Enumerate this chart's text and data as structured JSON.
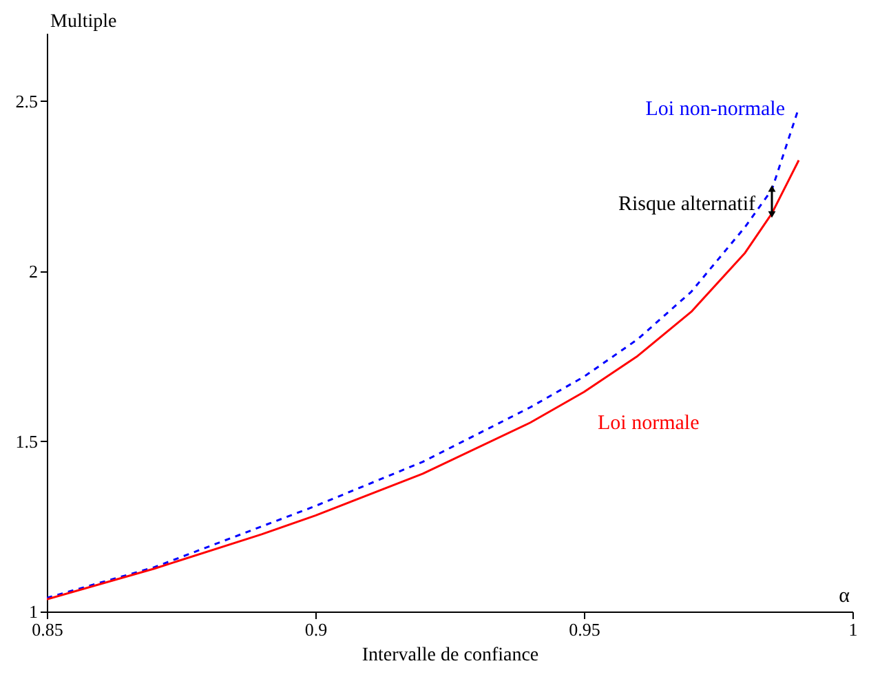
{
  "chart_data": {
    "type": "line",
    "xlabel": "Intervalle de confiance",
    "ylabel": "Multiple",
    "xlim": [
      0.85,
      1
    ],
    "xticks": [
      0.85,
      0.9,
      0.95,
      1
    ],
    "ylim": [
      1,
      2.7
    ],
    "yticks": [
      1,
      1.5,
      2,
      2.5
    ],
    "grid": false,
    "marker": "none",
    "x": [
      0.85,
      0.87,
      0.89,
      0.9,
      0.92,
      0.94,
      0.95,
      0.96,
      0.97,
      0.98,
      0.985,
      0.99
    ],
    "series": [
      {
        "name": "Loi non-normale",
        "color": "#0000ff",
        "line_style": "dashed",
        "values": [
          1.04,
          1.13,
          1.25,
          1.31,
          1.44,
          1.6,
          1.69,
          1.8,
          1.94,
          2.13,
          2.24,
          2.48
        ]
      },
      {
        "name": "Loi normale",
        "color": "#ff0000",
        "line_style": "solid",
        "values": [
          1.036,
          1.126,
          1.227,
          1.282,
          1.405,
          1.555,
          1.645,
          1.751,
          1.881,
          2.054,
          2.17,
          2.326
        ]
      }
    ],
    "annotations": [
      {
        "text": "Risque alternatif",
        "x": 0.985,
        "y": 2.2
      },
      "α"
    ]
  }
}
